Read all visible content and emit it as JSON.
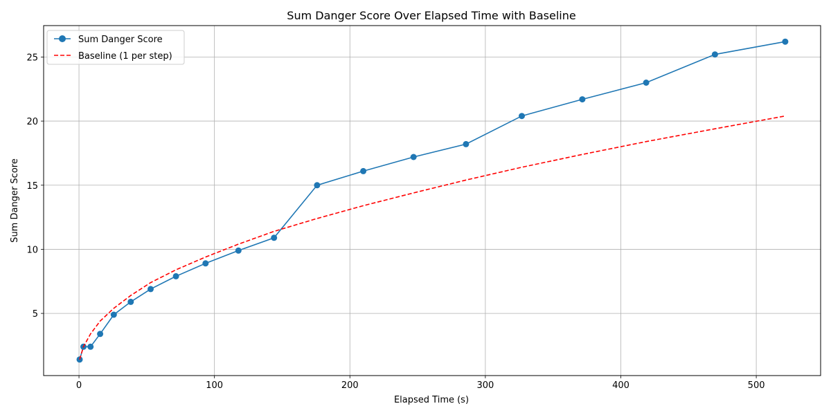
{
  "chart_data": {
    "type": "line",
    "title": "Sum Danger Score Over Elapsed Time with Baseline",
    "xlabel": "Elapsed Time (s)",
    "ylabel": "Sum Danger Score",
    "xlim": [
      -26.1,
      547.5
    ],
    "ylim": [
      0.15,
      27.45
    ],
    "xticks": [
      0,
      100,
      200,
      300,
      400,
      500
    ],
    "yticks": [
      5,
      10,
      15,
      20,
      25
    ],
    "grid": true,
    "legend_position": "top-left",
    "series": [
      {
        "name": "Sum Danger Score",
        "color": "#1f77b4",
        "style": "solid",
        "marker": "circle",
        "x": [
          0.5,
          3.3,
          8.5,
          15.6,
          25.7,
          38.2,
          52.9,
          71.6,
          93.4,
          117.7,
          144.0,
          175.8,
          209.9,
          247.0,
          285.7,
          326.9,
          371.6,
          418.7,
          469.5,
          521.4
        ],
        "y": [
          1.4,
          2.4,
          2.4,
          3.4,
          4.9,
          5.9,
          6.9,
          7.9,
          8.9,
          9.9,
          10.9,
          15.0,
          16.1,
          17.2,
          18.2,
          20.4,
          21.7,
          23.0,
          25.2,
          26.2
        ]
      },
      {
        "name": "Baseline (1 per step)",
        "color": "#ff0000",
        "style": "dashed",
        "marker": "none",
        "x": [
          0.5,
          3.3,
          8.5,
          15.6,
          25.7,
          38.2,
          52.9,
          71.6,
          93.4,
          117.7,
          144.0,
          175.8,
          209.9,
          247.0,
          285.7,
          326.9,
          371.6,
          418.7,
          469.5,
          521.4
        ],
        "y": [
          1.4,
          2.4,
          3.4,
          4.4,
          5.4,
          6.4,
          7.4,
          8.4,
          9.4,
          10.4,
          11.4,
          12.4,
          13.4,
          14.4,
          15.4,
          16.4,
          17.4,
          18.4,
          19.4,
          20.4
        ]
      }
    ]
  }
}
